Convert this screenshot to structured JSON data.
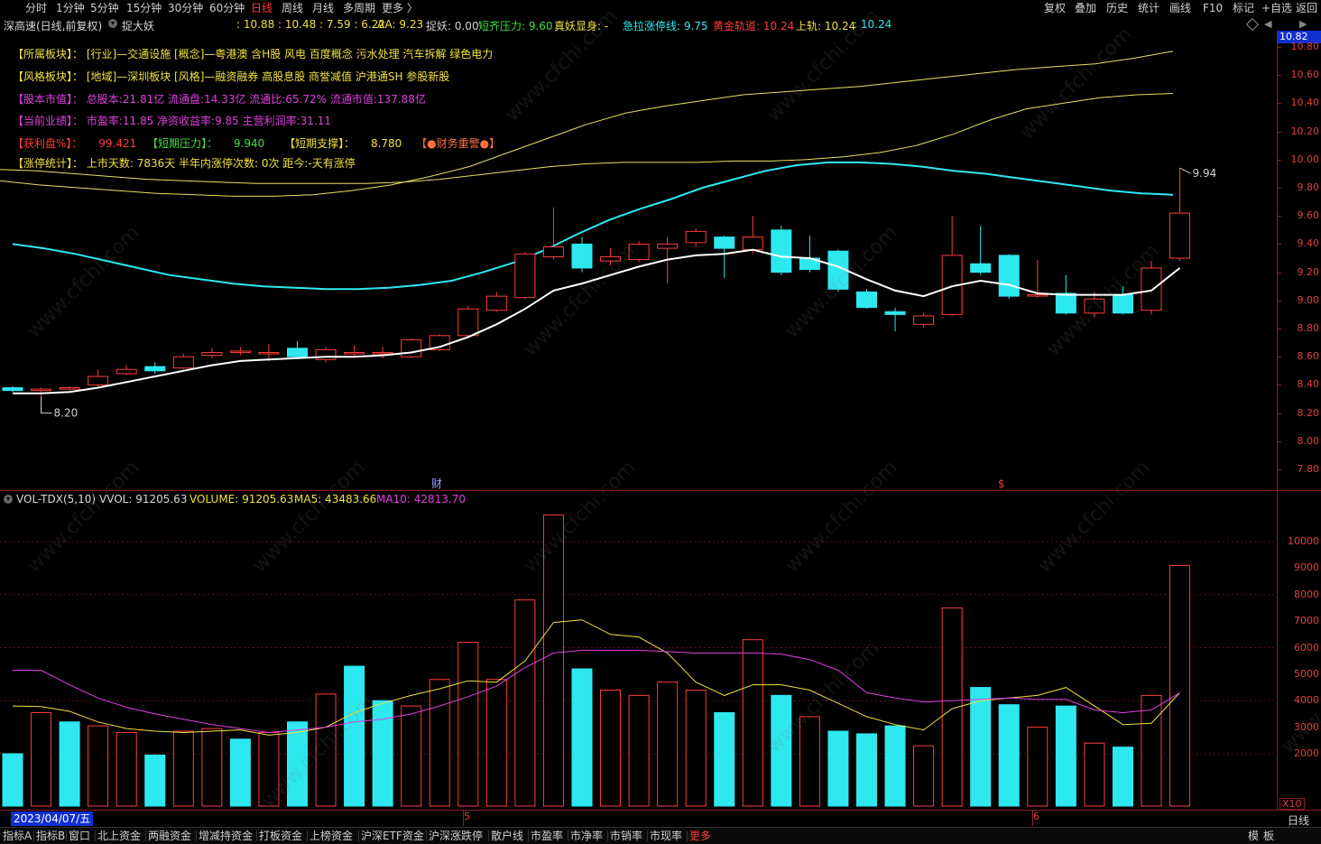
{
  "periods": [
    "分时",
    "1分钟",
    "5分钟",
    "15分钟",
    "30分钟",
    "60分钟",
    "日线",
    "周线",
    "月线",
    "多周期",
    "更多 〉"
  ],
  "active_period": "日线",
  "toolbar": [
    "复权",
    "叠加",
    "历史",
    "统计",
    "画线",
    "F10",
    "标记",
    "+自选",
    "返回"
  ],
  "header": {
    "title": "深高速(日线,前复权)",
    "indicator": "捉大妖",
    "values": ": 10.88 : 10.48 : 7.59 : 6.22",
    "aa": "AA: 9.23",
    "zhuoyao": "捉妖: 0.00",
    "duanqi": "短齐压力: 9.60",
    "zhenyao": "真妖显身: -",
    "jila": "急拉涨停线: 9.75",
    "huangjin": "黄金轨道: 10.24",
    "shanggui": "上轨: 10.24",
    "shanggui_val": ": 10.24"
  },
  "info_lines": [
    {
      "label": "【所属板块】：",
      "text": "[行业]—交通设施 [概念]—粤港澳 含H股 风电 百度概念 污水处理 汽车拆解 绿色电力",
      "color": "#f0e040"
    },
    {
      "label": "【风格板块】：",
      "text": "[地域]—深圳板块 [风格]—融资融券 高股息股 商誉减值 沪港通SH 参股新股",
      "color": "#f0e040"
    },
    {
      "label": "【股本市值】：",
      "text": "总股本:21.81亿 流通盘:14.33亿 流通比:65.72% 流通市值:137.88亿",
      "color": "#e040e0"
    },
    {
      "label": "【当前业绩】：",
      "text": "市盈率:11.85 净资收益率:9.85 主营利润率:31.11",
      "color": "#e040e0"
    }
  ],
  "profit_line": {
    "label1": "【获利盘%】：",
    "val1": "99.421",
    "label2": "【短期压力】：",
    "val2": "9.940",
    "label3": "【短期支撑】：",
    "val3": "8.780",
    "warn": "【●财务重警●】"
  },
  "limit_line": {
    "label": "【涨停统计】：",
    "text": "上市天数: 7836天 半年内涨停次数: 0次   距今:-天有涨停"
  },
  "price_axis": [
    "10.82",
    "10.80",
    "10.60",
    "10.40",
    "10.20",
    "10.00",
    "9.80",
    "9.60",
    "9.40",
    "9.20",
    "9.00",
    "8.80",
    "8.60",
    "8.40",
    "8.20",
    "8.00",
    "7.80"
  ],
  "price_marks": {
    "high": "9.94",
    "low": "8.20",
    "cai": "财",
    "s_mark": "$"
  },
  "volume": {
    "name": "VOL-TDX(5,10)",
    "vvol": "VVOL: 91205.63",
    "volume": "VOLUME: 91205.63",
    "ma5": "MA5: 43483.66",
    "ma10": "MA10: 42813.70"
  },
  "vol_axis": [
    "10000",
    "9000",
    "8000",
    "7000",
    "6000",
    "5000",
    "4000",
    "3000",
    "2000"
  ],
  "vol_unit": "X10",
  "date_label": "2023/04/07/五",
  "month_marks": [
    "5",
    "6"
  ],
  "bottom_tabs": [
    "指标A",
    "指标B",
    "窗口",
    "北上资金",
    "两融资金",
    "增减持资金",
    "打板资金",
    "上榜资金",
    "沪深ETF资金",
    "沪深涨跌停",
    "散户线",
    "市盈率",
    "市净率",
    "市销率",
    "市现率",
    "更多"
  ],
  "bottom_right": [
    "模",
    "板"
  ],
  "bottom_right2": "日线",
  "watermark": "www.cfchi.com",
  "colors": {
    "up": "#ff3b3b",
    "down": "#2ee8f0",
    "ma": "#ffffff",
    "band": "#e8e060",
    "mid": "#2ee8f0",
    "ma10": "#e040e0",
    "frame": "#8a1e1e"
  },
  "chart_data": {
    "type": "candlestick",
    "price_range": [
      7.7,
      10.85
    ],
    "candles": [
      {
        "o": 8.38,
        "c": 8.36,
        "h": 8.39,
        "l": 8.35
      },
      {
        "o": 8.36,
        "c": 8.37,
        "h": 8.38,
        "l": 8.2
      },
      {
        "o": 8.37,
        "c": 8.38,
        "h": 8.39,
        "l": 8.36
      },
      {
        "o": 8.4,
        "c": 8.46,
        "h": 8.51,
        "l": 8.38
      },
      {
        "o": 8.48,
        "c": 8.51,
        "h": 8.54,
        "l": 8.47
      },
      {
        "o": 8.53,
        "c": 8.5,
        "h": 8.56,
        "l": 8.48
      },
      {
        "o": 8.52,
        "c": 8.6,
        "h": 8.62,
        "l": 8.51
      },
      {
        "o": 8.61,
        "c": 8.63,
        "h": 8.66,
        "l": 8.59
      },
      {
        "o": 8.64,
        "c": 8.64,
        "h": 8.67,
        "l": 8.61
      },
      {
        "o": 8.63,
        "c": 8.63,
        "h": 8.69,
        "l": 8.57
      },
      {
        "o": 8.66,
        "c": 8.6,
        "h": 8.71,
        "l": 8.59
      },
      {
        "o": 8.58,
        "c": 8.65,
        "h": 8.67,
        "l": 8.56
      },
      {
        "o": 8.63,
        "c": 8.63,
        "h": 8.68,
        "l": 8.59
      },
      {
        "o": 8.63,
        "c": 8.63,
        "h": 8.67,
        "l": 8.59
      },
      {
        "o": 8.6,
        "c": 8.72,
        "h": 8.73,
        "l": 8.59
      },
      {
        "o": 8.65,
        "c": 8.75,
        "h": 8.76,
        "l": 8.64
      },
      {
        "o": 8.75,
        "c": 8.94,
        "h": 8.96,
        "l": 8.74
      },
      {
        "o": 8.93,
        "c": 9.03,
        "h": 9.06,
        "l": 8.92
      },
      {
        "o": 9.02,
        "c": 9.33,
        "h": 9.34,
        "l": 9.01
      },
      {
        "o": 9.31,
        "c": 9.38,
        "h": 9.66,
        "l": 9.29
      },
      {
        "o": 9.4,
        "c": 9.23,
        "h": 9.45,
        "l": 9.2
      },
      {
        "o": 9.28,
        "c": 9.31,
        "h": 9.37,
        "l": 9.25
      },
      {
        "o": 9.29,
        "c": 9.4,
        "h": 9.42,
        "l": 9.27
      },
      {
        "o": 9.37,
        "c": 9.4,
        "h": 9.45,
        "l": 9.12
      },
      {
        "o": 9.41,
        "c": 9.49,
        "h": 9.51,
        "l": 9.38
      },
      {
        "o": 9.45,
        "c": 9.37,
        "h": 9.46,
        "l": 9.16
      },
      {
        "o": 9.36,
        "c": 9.45,
        "h": 9.6,
        "l": 9.33
      },
      {
        "o": 9.5,
        "c": 9.2,
        "h": 9.53,
        "l": 9.18
      },
      {
        "o": 9.3,
        "c": 9.22,
        "h": 9.46,
        "l": 9.2
      },
      {
        "o": 9.35,
        "c": 9.08,
        "h": 9.36,
        "l": 9.06
      },
      {
        "o": 9.06,
        "c": 8.95,
        "h": 9.08,
        "l": 8.94
      },
      {
        "o": 8.92,
        "c": 8.9,
        "h": 8.95,
        "l": 8.78
      },
      {
        "o": 8.83,
        "c": 8.89,
        "h": 8.91,
        "l": 8.81
      },
      {
        "o": 8.9,
        "c": 9.32,
        "h": 9.6,
        "l": 8.89
      },
      {
        "o": 9.26,
        "c": 9.2,
        "h": 9.53,
        "l": 9.18
      },
      {
        "o": 9.32,
        "c": 9.03,
        "h": 9.33,
        "l": 9.01
      },
      {
        "o": 9.04,
        "c": 9.04,
        "h": 9.29,
        "l": 9.02
      },
      {
        "o": 9.05,
        "c": 8.91,
        "h": 9.18,
        "l": 8.9
      },
      {
        "o": 8.91,
        "c": 9.01,
        "h": 9.06,
        "l": 8.88
      },
      {
        "o": 9.04,
        "c": 8.91,
        "h": 9.1,
        "l": 8.9
      },
      {
        "o": 8.93,
        "c": 9.23,
        "h": 9.28,
        "l": 8.9
      },
      {
        "o": 9.3,
        "c": 9.62,
        "h": 9.94,
        "l": 9.28
      }
    ],
    "ma": [
      8.34,
      8.34,
      8.35,
      8.38,
      8.42,
      8.46,
      8.5,
      8.54,
      8.57,
      8.58,
      8.59,
      8.6,
      8.6,
      8.61,
      8.63,
      8.67,
      8.74,
      8.83,
      8.94,
      9.07,
      9.12,
      9.18,
      9.24,
      9.29,
      9.32,
      9.33,
      9.36,
      9.31,
      9.3,
      9.24,
      9.15,
      9.07,
      9.03,
      9.1,
      9.14,
      9.11,
      9.05,
      9.04,
      9.04,
      9.04,
      9.07,
      9.23
    ],
    "mid_band": [
      9.4,
      9.37,
      9.33,
      9.28,
      9.23,
      9.18,
      9.15,
      9.12,
      9.1,
      9.09,
      9.08,
      9.08,
      9.09,
      9.11,
      9.14,
      9.2,
      9.27,
      9.36,
      9.47,
      9.57,
      9.65,
      9.72,
      9.8,
      9.86,
      9.92,
      9.96,
      9.98,
      9.98,
      9.97,
      9.95,
      9.92,
      9.9,
      9.87,
      9.84,
      9.81,
      9.78,
      9.76,
      9.75
    ],
    "upper_band": [
      9.85,
      9.82,
      9.8,
      9.78,
      9.76,
      9.75,
      9.74,
      9.74,
      9.75,
      9.78,
      9.82,
      9.88,
      9.95,
      10.05,
      10.15,
      10.25,
      10.33,
      10.38,
      10.42,
      10.46,
      10.48,
      10.5,
      10.52,
      10.55,
      10.58,
      10.61,
      10.64,
      10.66,
      10.68,
      10.72,
      10.77
    ],
    "lower_band": [
      9.93,
      9.92,
      9.9,
      9.88,
      9.86,
      9.85,
      9.84,
      9.83,
      9.83,
      9.83,
      9.83,
      9.84,
      9.86,
      9.89,
      9.92,
      9.95,
      9.97,
      9.98,
      9.98,
      9.98,
      9.99,
      9.99,
      10.0,
      10.02,
      10.05,
      10.1,
      10.18,
      10.28,
      10.36,
      10.4,
      10.44,
      10.46,
      10.47
    ],
    "volumes": [
      {
        "v": 2000,
        "up": false
      },
      {
        "v": 3550,
        "up": true
      },
      {
        "v": 3200,
        "up": false
      },
      {
        "v": 3050,
        "up": true
      },
      {
        "v": 2800,
        "up": true
      },
      {
        "v": 1950,
        "up": false
      },
      {
        "v": 2850,
        "up": true
      },
      {
        "v": 2950,
        "up": true
      },
      {
        "v": 2550,
        "up": false
      },
      {
        "v": 2800,
        "up": true
      },
      {
        "v": 3200,
        "up": false
      },
      {
        "v": 4250,
        "up": true
      },
      {
        "v": 5300,
        "up": false
      },
      {
        "v": 4000,
        "up": false
      },
      {
        "v": 3800,
        "up": true
      },
      {
        "v": 4800,
        "up": true
      },
      {
        "v": 6200,
        "up": true
      },
      {
        "v": 4800,
        "up": true
      },
      {
        "v": 7800,
        "up": true
      },
      {
        "v": 11000,
        "up": true
      },
      {
        "v": 5200,
        "up": false
      },
      {
        "v": 4400,
        "up": true
      },
      {
        "v": 4200,
        "up": true
      },
      {
        "v": 4700,
        "up": true
      },
      {
        "v": 4400,
        "up": true
      },
      {
        "v": 3550,
        "up": false
      },
      {
        "v": 6300,
        "up": true
      },
      {
        "v": 4200,
        "up": false
      },
      {
        "v": 3400,
        "up": true
      },
      {
        "v": 2850,
        "up": false
      },
      {
        "v": 2750,
        "up": false
      },
      {
        "v": 3050,
        "up": false
      },
      {
        "v": 2300,
        "up": true
      },
      {
        "v": 7500,
        "up": true
      },
      {
        "v": 4500,
        "up": false
      },
      {
        "v": 3850,
        "up": false
      },
      {
        "v": 3000,
        "up": true
      },
      {
        "v": 3800,
        "up": false
      },
      {
        "v": 2400,
        "up": true
      },
      {
        "v": 2250,
        "up": false
      },
      {
        "v": 4200,
        "up": true
      },
      {
        "v": 9100,
        "up": true
      }
    ],
    "vol_ma5": [
      3800,
      3780,
      3600,
      3200,
      2950,
      2850,
      2800,
      2850,
      2900,
      2700,
      2800,
      3000,
      3550,
      3900,
      4200,
      4450,
      4750,
      4700,
      5500,
      6950,
      7050,
      6500,
      6400,
      5800,
      4700,
      4200,
      4600,
      4600,
      4400,
      3900,
      3400,
      3100,
      2900,
      3700,
      4000,
      4100,
      4200,
      4500,
      3800,
      3100,
      3150,
      4300
    ],
    "vol_ma10": [
      5150,
      5150,
      4600,
      4100,
      3750,
      3500,
      3300,
      3100,
      2950,
      2800,
      2900,
      3000,
      3200,
      3300,
      3500,
      3800,
      4150,
      4550,
      5250,
      5800,
      5900,
      5900,
      5900,
      5850,
      5800,
      5800,
      5800,
      5750,
      5550,
      5150,
      4300,
      4100,
      3950,
      4000,
      4050,
      4100,
      4050,
      4050,
      3650,
      3550,
      3650,
      4300
    ],
    "vol_range": [
      0,
      11100
    ]
  }
}
